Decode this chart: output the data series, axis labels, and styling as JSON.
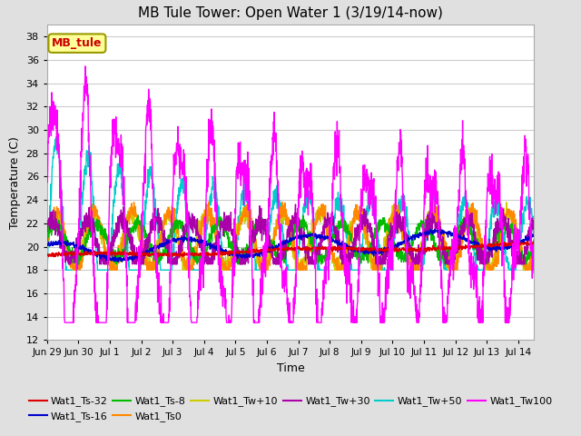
{
  "title": "MB Tule Tower: Open Water 1 (3/19/14-now)",
  "xlabel": "Time",
  "ylabel": "Temperature (C)",
  "ylim": [
    12,
    39
  ],
  "yticks": [
    12,
    14,
    16,
    18,
    20,
    22,
    24,
    26,
    28,
    30,
    32,
    34,
    36,
    38
  ],
  "xlim_days": [
    0,
    15.5
  ],
  "xtick_labels": [
    "Jun 29",
    "Jun 30",
    "Jul 1",
    "Jul 2",
    "Jul 3",
    "Jul 4",
    "Jul 5",
    "Jul 6",
    "Jul 7",
    "Jul 8",
    "Jul 9",
    "Jul 10",
    "Jul 11",
    "Jul 12",
    "Jul 13",
    "Jul 14"
  ],
  "xtick_positions": [
    0,
    1,
    2,
    3,
    4,
    5,
    6,
    7,
    8,
    9,
    10,
    11,
    12,
    13,
    14,
    15
  ],
  "series_colors": {
    "Wat1_Ts-32": "#dd0000",
    "Wat1_Ts-16": "#0000cc",
    "Wat1_Ts-8": "#00bb00",
    "Wat1_Ts0": "#ff8800",
    "Wat1_Tw+10": "#cccc00",
    "Wat1_Tw+30": "#aa00aa",
    "Wat1_Tw+50": "#00cccc",
    "Wat1_Tw100": "#ff00ff"
  },
  "legend_box_color": "#ffff99",
  "legend_box_text": "MB_tule",
  "legend_box_text_color": "#cc0000",
  "background_color": "#e0e0e0",
  "plot_bg_color": "#ffffff",
  "grid_color": "#cccccc",
  "title_fontsize": 11
}
